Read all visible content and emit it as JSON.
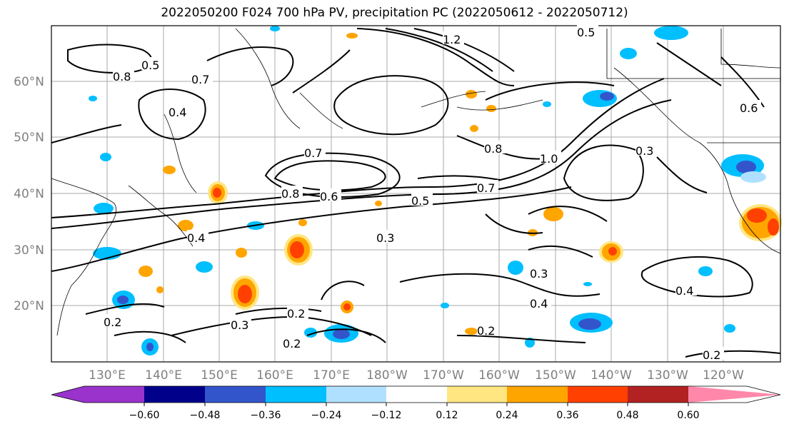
{
  "title": "2022050200 F024 700 hPa PV, precipitation PC (2022050612 - 2022050712)",
  "lat_labels": [
    "60°N",
    "50°N",
    "40°N",
    "30°N",
    "20°N"
  ],
  "lon_labels": [
    "130°E",
    "140°E",
    "150°E",
    "160°E",
    "170°E",
    "180°W",
    "170°W",
    "160°W",
    "150°W",
    "140°W",
    "130°W",
    "120°W"
  ],
  "colorbar": {
    "ticks": [
      "−0.60",
      "−0.48",
      "−0.36",
      "−0.24",
      "−0.12",
      "0.12",
      "0.24",
      "0.36",
      "0.48",
      "0.60"
    ],
    "colors": [
      "#9933cc",
      "#00008b",
      "#3355cc",
      "#00bfff",
      "#b0e0ff",
      "#ffffff",
      "#ffe680",
      "#ffa500",
      "#ff4000",
      "#b22222",
      "#ff88aa"
    ]
  },
  "contour_labels": [
    "0.2",
    "0.3",
    "0.4",
    "0.5",
    "0.7",
    "0.8",
    "1.0",
    "0.6",
    "1.2",
    "0.7",
    "0.5",
    "0.3",
    "0.8",
    "0.4",
    "0.2",
    "0.3",
    "0.4",
    "0.2",
    "0.2",
    "0.2",
    "0.4",
    "0.3",
    "0.5",
    "0.7",
    "0.8",
    "0.6"
  ]
}
